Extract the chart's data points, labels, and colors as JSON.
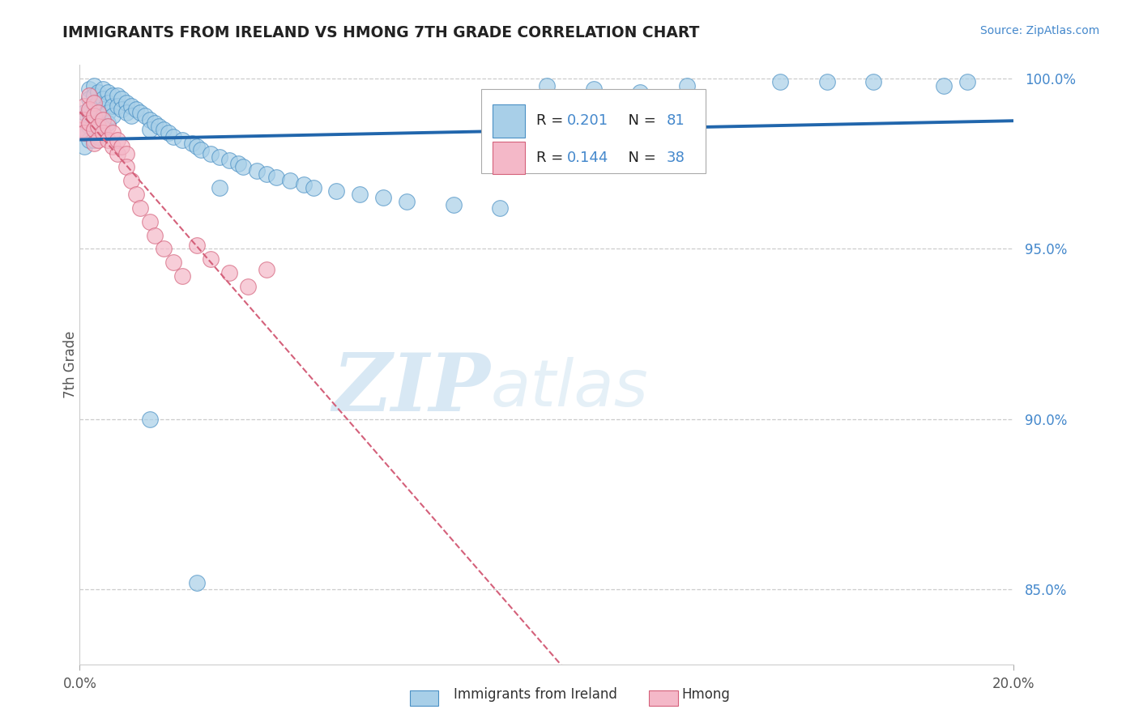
{
  "title": "IMMIGRANTS FROM IRELAND VS HMONG 7TH GRADE CORRELATION CHART",
  "source_text": "Source: ZipAtlas.com",
  "ylabel": "7th Grade",
  "right_ytick_vals": [
    85.0,
    90.0,
    95.0,
    100.0
  ],
  "watermark_zip": "ZIP",
  "watermark_atlas": "atlas",
  "legend_ireland": "Immigrants from Ireland",
  "legend_hmong": "Hmong",
  "R_ireland": "0.201",
  "N_ireland": "81",
  "R_hmong": "0.144",
  "N_hmong": "38",
  "color_ireland_fill": "#a8cfe8",
  "color_ireland_edge": "#4a90c4",
  "color_hmong_fill": "#f4b8c8",
  "color_hmong_edge": "#d4607a",
  "color_ireland_line": "#2166ac",
  "color_hmong_line": "#d4607a",
  "color_grid": "#cccccc",
  "color_rtick": "#4488cc",
  "xmin": 0.0,
  "xmax": 0.2,
  "ymin": 0.828,
  "ymax": 1.004,
  "ireland_x": [
    0.001,
    0.001,
    0.001,
    0.002,
    0.002,
    0.002,
    0.002,
    0.002,
    0.003,
    0.003,
    0.003,
    0.003,
    0.003,
    0.003,
    0.004,
    0.004,
    0.004,
    0.004,
    0.004,
    0.005,
    0.005,
    0.005,
    0.005,
    0.006,
    0.006,
    0.006,
    0.006,
    0.007,
    0.007,
    0.007,
    0.008,
    0.008,
    0.009,
    0.009,
    0.01,
    0.01,
    0.011,
    0.011,
    0.012,
    0.013,
    0.014,
    0.015,
    0.015,
    0.016,
    0.017,
    0.018,
    0.019,
    0.02,
    0.022,
    0.024,
    0.025,
    0.026,
    0.028,
    0.03,
    0.032,
    0.034,
    0.035,
    0.038,
    0.04,
    0.042,
    0.045,
    0.048,
    0.05,
    0.055,
    0.06,
    0.065,
    0.07,
    0.08,
    0.09,
    0.1,
    0.11,
    0.12,
    0.13,
    0.15,
    0.16,
    0.17,
    0.185,
    0.19,
    0.015,
    0.025,
    0.03
  ],
  "ireland_y": [
    0.99,
    0.985,
    0.98,
    0.997,
    0.994,
    0.99,
    0.986,
    0.982,
    0.998,
    0.995,
    0.992,
    0.988,
    0.985,
    0.982,
    0.996,
    0.993,
    0.99,
    0.986,
    0.983,
    0.997,
    0.994,
    0.991,
    0.987,
    0.996,
    0.993,
    0.99,
    0.987,
    0.995,
    0.992,
    0.989,
    0.995,
    0.992,
    0.994,
    0.991,
    0.993,
    0.99,
    0.992,
    0.989,
    0.991,
    0.99,
    0.989,
    0.988,
    0.985,
    0.987,
    0.986,
    0.985,
    0.984,
    0.983,
    0.982,
    0.981,
    0.98,
    0.979,
    0.978,
    0.977,
    0.976,
    0.975,
    0.974,
    0.973,
    0.972,
    0.971,
    0.97,
    0.969,
    0.968,
    0.967,
    0.966,
    0.965,
    0.964,
    0.963,
    0.962,
    0.998,
    0.997,
    0.996,
    0.998,
    0.999,
    0.999,
    0.999,
    0.998,
    0.999,
    0.9,
    0.852,
    0.968
  ],
  "hmong_x": [
    0.0005,
    0.001,
    0.001,
    0.001,
    0.002,
    0.002,
    0.002,
    0.003,
    0.003,
    0.003,
    0.003,
    0.004,
    0.004,
    0.004,
    0.005,
    0.005,
    0.006,
    0.006,
    0.007,
    0.007,
    0.008,
    0.008,
    0.009,
    0.01,
    0.01,
    0.011,
    0.012,
    0.013,
    0.015,
    0.016,
    0.018,
    0.02,
    0.022,
    0.025,
    0.028,
    0.032,
    0.036,
    0.04
  ],
  "hmong_y": [
    0.985,
    0.992,
    0.988,
    0.984,
    0.995,
    0.991,
    0.987,
    0.993,
    0.989,
    0.985,
    0.981,
    0.99,
    0.986,
    0.982,
    0.988,
    0.984,
    0.986,
    0.982,
    0.984,
    0.98,
    0.982,
    0.978,
    0.98,
    0.978,
    0.974,
    0.97,
    0.966,
    0.962,
    0.958,
    0.954,
    0.95,
    0.946,
    0.942,
    0.951,
    0.947,
    0.943,
    0.939,
    0.944
  ]
}
